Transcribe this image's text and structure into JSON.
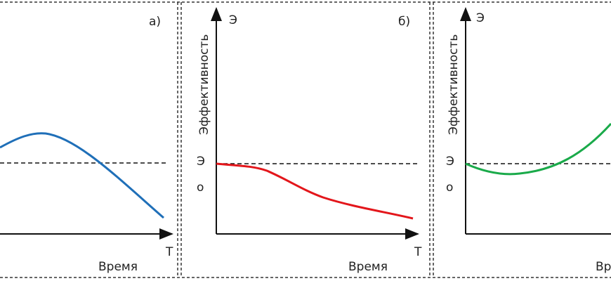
{
  "panels": [
    {
      "label": "а)",
      "x_label": "Время",
      "x_end": "Т"
    },
    {
      "y_label": "Эффективность",
      "y_top": "Э",
      "label": "б)",
      "e0_letter": "Э",
      "e0_sub": "о",
      "x_label": "Время",
      "x_end": "Т"
    },
    {
      "y_label": "Эффективность",
      "y_top": "Э",
      "e0_letter": "Э",
      "e0_sub": "о",
      "x_label": "Время"
    }
  ]
}
